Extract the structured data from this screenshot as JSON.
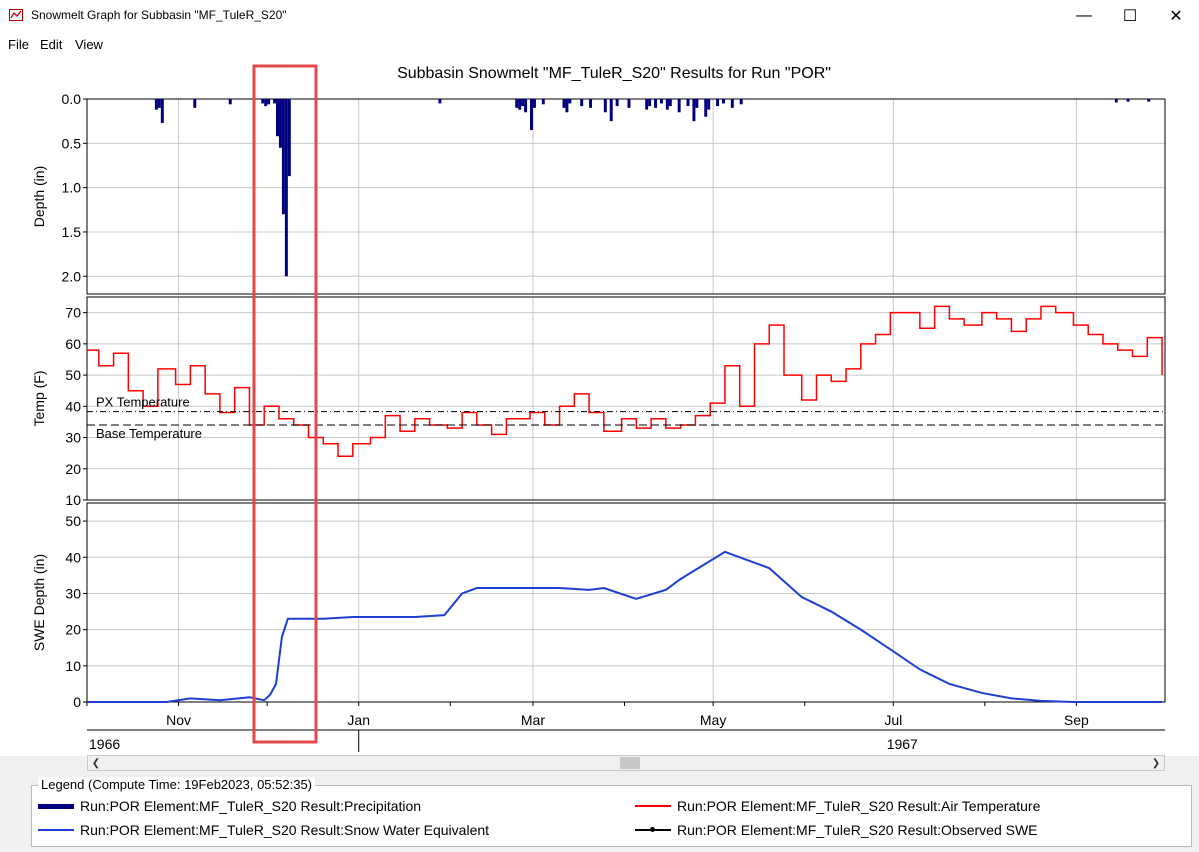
{
  "window": {
    "title": "Snowmelt Graph for Subbasin \"MF_TuleR_S20\"",
    "minimize_glyph": "—",
    "maximize_glyph": "☐",
    "close_glyph": "✕"
  },
  "menu": {
    "file": "File",
    "edit": "Edit",
    "view": "View"
  },
  "toolbar": {
    "pointer_icon": "pointer-arrow-icon",
    "zoom_icon": "magnifier-icon"
  },
  "chart": {
    "title": "Subbasin Snowmelt \"MF_TuleR_S20\" Results for Run \"POR\"",
    "month_labels": [
      "Nov",
      "Jan",
      "Mar",
      "May",
      "Jul",
      "Sep"
    ],
    "year_labels": [
      "1966",
      "1967"
    ],
    "colors": {
      "precip": "#00007f",
      "temp": "#ff0000",
      "swe": "#1f3fd1",
      "highlight": "#e0484c"
    }
  },
  "chart_data": [
    {
      "type": "bar",
      "ylabel": "Depth (in)",
      "ylim": [
        2.2,
        0.0
      ],
      "yticks": [
        "0.0",
        "0.5",
        "1.0",
        "1.5",
        "2.0"
      ],
      "series": [
        {
          "name": "Run:POR Element:MF_TuleR_S20 Result:Precipitation",
          "points": [
            [
              "1966-10-24",
              0.12
            ],
            [
              "1966-10-25",
              0.1
            ],
            [
              "1966-10-26",
              0.27
            ],
            [
              "1966-11-06",
              0.1
            ],
            [
              "1966-11-18",
              0.06
            ],
            [
              "1966-11-29",
              0.05
            ],
            [
              "1966-11-30",
              0.08
            ],
            [
              "1966-12-01",
              0.06
            ],
            [
              "1966-12-03",
              0.05
            ],
            [
              "1966-12-04",
              0.42
            ],
            [
              "1966-12-05",
              0.55
            ],
            [
              "1966-12-06",
              1.3
            ],
            [
              "1966-12-07",
              2.0
            ],
            [
              "1966-12-08",
              0.87
            ],
            [
              "1967-01-28",
              0.05
            ],
            [
              "1967-02-23",
              0.1
            ],
            [
              "1967-02-24",
              0.12
            ],
            [
              "1967-02-25",
              0.08
            ],
            [
              "1967-02-26",
              0.15
            ],
            [
              "1967-02-28",
              0.35
            ],
            [
              "1967-03-01",
              0.1
            ],
            [
              "1967-03-04",
              0.06
            ],
            [
              "1967-03-11",
              0.1
            ],
            [
              "1967-03-12",
              0.15
            ],
            [
              "1967-03-13",
              0.05
            ],
            [
              "1967-03-17",
              0.08
            ],
            [
              "1967-03-20",
              0.1
            ],
            [
              "1967-03-25",
              0.15
            ],
            [
              "1967-03-27",
              0.25
            ],
            [
              "1967-03-29",
              0.08
            ],
            [
              "1967-04-02",
              0.1
            ],
            [
              "1967-04-08",
              0.12
            ],
            [
              "1967-04-09",
              0.08
            ],
            [
              "1967-04-11",
              0.1
            ],
            [
              "1967-04-13",
              0.05
            ],
            [
              "1967-04-15",
              0.12
            ],
            [
              "1967-04-16",
              0.08
            ],
            [
              "1967-04-19",
              0.15
            ],
            [
              "1967-04-22",
              0.08
            ],
            [
              "1967-04-24",
              0.25
            ],
            [
              "1967-04-25",
              0.1
            ],
            [
              "1967-04-28",
              0.2
            ],
            [
              "1967-04-29",
              0.12
            ],
            [
              "1967-05-02",
              0.08
            ],
            [
              "1967-05-04",
              0.05
            ],
            [
              "1967-05-07",
              0.1
            ],
            [
              "1967-05-10",
              0.06
            ],
            [
              "1967-09-14",
              0.04
            ],
            [
              "1967-09-18",
              0.03
            ],
            [
              "1967-09-25",
              0.03
            ]
          ]
        }
      ]
    },
    {
      "type": "line",
      "ylabel": "Temp (F)",
      "ylim": [
        10,
        75
      ],
      "yticks": [
        "10",
        "20",
        "30",
        "40",
        "50",
        "60",
        "70"
      ],
      "reference_lines": [
        {
          "label": "PX Temperature",
          "value": 38.3,
          "style": "dash-dot"
        },
        {
          "label": "Base Temperature",
          "value": 34.0,
          "style": "dashed"
        }
      ],
      "series": [
        {
          "name": "Run:POR Element:MF_TuleR_S20 Result:Air Temperature",
          "x": [
            "1966-10-01",
            "1966-10-05",
            "1966-10-10",
            "1966-10-15",
            "1966-10-20",
            "1966-10-25",
            "1966-10-31",
            "1966-11-05",
            "1966-11-10",
            "1966-11-15",
            "1966-11-20",
            "1966-11-25",
            "1966-11-30",
            "1966-12-05",
            "1966-12-10",
            "1966-12-15",
            "1966-12-20",
            "1966-12-25",
            "1966-12-30",
            "1967-01-05",
            "1967-01-10",
            "1967-01-15",
            "1967-01-20",
            "1967-01-25",
            "1967-01-31",
            "1967-02-05",
            "1967-02-10",
            "1967-02-15",
            "1967-02-20",
            "1967-02-28",
            "1967-03-05",
            "1967-03-10",
            "1967-03-15",
            "1967-03-20",
            "1967-03-25",
            "1967-03-31",
            "1967-04-05",
            "1967-04-10",
            "1967-04-15",
            "1967-04-20",
            "1967-04-25",
            "1967-04-30",
            "1967-05-05",
            "1967-05-10",
            "1967-05-15",
            "1967-05-20",
            "1967-05-25",
            "1967-05-31",
            "1967-06-05",
            "1967-06-10",
            "1967-06-15",
            "1967-06-20",
            "1967-06-25",
            "1967-06-30",
            "1967-07-05",
            "1967-07-10",
            "1967-07-15",
            "1967-07-20",
            "1967-07-25",
            "1967-07-31",
            "1967-08-05",
            "1967-08-10",
            "1967-08-15",
            "1967-08-20",
            "1967-08-25",
            "1967-08-31",
            "1967-09-05",
            "1967-09-10",
            "1967-09-15",
            "1967-09-20",
            "1967-09-25",
            "1967-09-30"
          ],
          "values": [
            58,
            53,
            57,
            45,
            40,
            52,
            47,
            53,
            44,
            38,
            46,
            34,
            40,
            36,
            34,
            30,
            28,
            24,
            28,
            30,
            37,
            32,
            36,
            34,
            33,
            38,
            34,
            31,
            36,
            38,
            34,
            40,
            44,
            38,
            32,
            36,
            33,
            36,
            33,
            34,
            37,
            41,
            53,
            40,
            60,
            66,
            50,
            42,
            50,
            48,
            52,
            60,
            63,
            70,
            70,
            65,
            72,
            68,
            66,
            70,
            68,
            64,
            68,
            72,
            70,
            66,
            63,
            60,
            58,
            56,
            62,
            50
          ]
        }
      ]
    },
    {
      "type": "line",
      "ylabel": "SWE Depth (in)",
      "ylim": [
        0,
        55
      ],
      "yticks": [
        "0",
        "10",
        "20",
        "30",
        "40",
        "50"
      ],
      "series": [
        {
          "name": "Run:POR Element:MF_TuleR_S20 Result:Snow Water Equivalent",
          "x": [
            "1966-10-01",
            "1966-10-28",
            "1966-11-05",
            "1966-11-15",
            "1966-11-25",
            "1966-11-30",
            "1966-12-02",
            "1966-12-04",
            "1966-12-06",
            "1966-12-08",
            "1966-12-10",
            "1966-12-20",
            "1966-12-30",
            "1967-01-10",
            "1967-01-20",
            "1967-01-30",
            "1967-02-05",
            "1967-02-10",
            "1967-02-20",
            "1967-03-10",
            "1967-03-20",
            "1967-03-25",
            "1967-04-05",
            "1967-04-15",
            "1967-04-20",
            "1967-04-28",
            "1967-05-05",
            "1967-05-10",
            "1967-05-20",
            "1967-05-31",
            "1967-06-10",
            "1967-06-20",
            "1967-07-01",
            "1967-07-10",
            "1967-07-20",
            "1967-07-31",
            "1967-08-10",
            "1967-08-20",
            "1967-08-31",
            "1967-09-10",
            "1967-09-20",
            "1967-09-30"
          ],
          "values": [
            0,
            0,
            1,
            0.5,
            1.3,
            0.5,
            2,
            5,
            18,
            23,
            23,
            23,
            23.5,
            23.5,
            23.5,
            24,
            30,
            31.5,
            31.5,
            31.5,
            31,
            31.5,
            28.5,
            31,
            34,
            38,
            41.5,
            40,
            37,
            29,
            25,
            20,
            14,
            9,
            5,
            2.5,
            1,
            0.3,
            0,
            0,
            0,
            0
          ]
        },
        {
          "name": "Run:POR Element:MF_TuleR_S20 Result:Observed SWE",
          "x": [],
          "values": []
        }
      ]
    }
  ],
  "legend": {
    "title": "Legend (Compute Time: 19Feb2023, 05:52:35)",
    "items": [
      {
        "label": "Run:POR Element:MF_TuleR_S20 Result:Precipitation",
        "color": "#00007f",
        "style": "thick"
      },
      {
        "label": "Run:POR Element:MF_TuleR_S20 Result:Air Temperature",
        "color": "#ff0000",
        "style": "line"
      },
      {
        "label": "Run:POR Element:MF_TuleR_S20 Result:Snow Water Equivalent",
        "color": "#1f3fd1",
        "style": "line"
      },
      {
        "label": "Run:POR Element:MF_TuleR_S20 Result:Observed SWE",
        "color": "#000000",
        "style": "marker"
      }
    ]
  }
}
